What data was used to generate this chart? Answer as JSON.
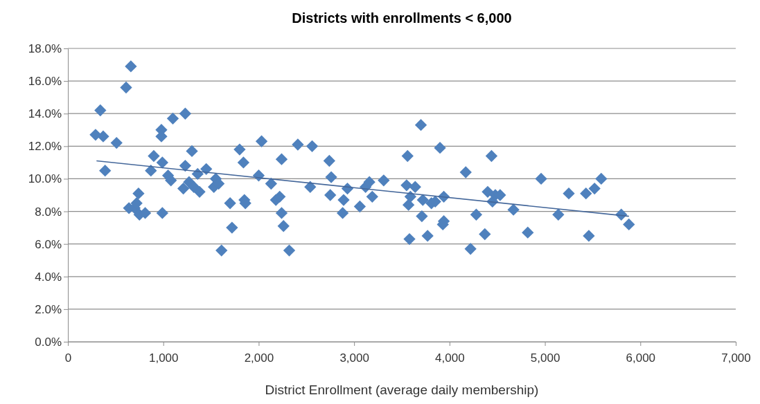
{
  "chart_data": {
    "type": "scatter",
    "title": "Districts with enrollments < 6,000",
    "xlabel": "District Enrollment (average daily membership)",
    "xlim": [
      0,
      7000
    ],
    "xticks": [
      0,
      {
        "value": 1000,
        "label": "1,000"
      },
      {
        "value": 2000,
        "label": "2,000"
      },
      {
        "value": 3000,
        "label": "3,000"
      },
      {
        "value": 4000,
        "label": "4,000"
      },
      {
        "value": 5000,
        "label": "5,000"
      },
      {
        "value": 6000,
        "label": "6,000"
      },
      {
        "value": 7000,
        "label": "7,000"
      }
    ],
    "ylim": [
      0,
      18
    ],
    "yticks": [
      {
        "value": 0,
        "label": "0.0%"
      },
      {
        "value": 2,
        "label": "2.0%"
      },
      {
        "value": 4,
        "label": "4.0%"
      },
      {
        "value": 6,
        "label": "6.0%"
      },
      {
        "value": 8,
        "label": "8.0%"
      },
      {
        "value": 10,
        "label": "10.0%"
      },
      {
        "value": 12,
        "label": "12.0%"
      },
      {
        "value": 14,
        "label": "14.0%"
      },
      {
        "value": 16,
        "label": "16.0%"
      },
      {
        "value": 18,
        "label": "18.0%"
      }
    ],
    "grid": "y",
    "series": [
      {
        "color": "#4f81bd",
        "marker": "diamond",
        "x": [
          290,
          340,
          370,
          390,
          510,
          610,
          660,
          640,
          700,
          720,
          740,
          750,
          810,
          870,
          900,
          980,
          980,
          990,
          990,
          1050,
          1080,
          1100,
          1230,
          1230,
          1210,
          1270,
          1300,
          1320,
          1380,
          1360,
          1450,
          1530,
          1550,
          1580,
          1610,
          1700,
          1720,
          1800,
          1840,
          1850,
          1860,
          2000,
          2030,
          2130,
          2180,
          2220,
          2240,
          2240,
          2260,
          2320,
          2410,
          2540,
          2560,
          2740,
          2760,
          2750,
          2880,
          2890,
          2930,
          3060,
          3120,
          3160,
          3190,
          3310,
          3550,
          3560,
          3570,
          3580,
          3590,
          3640,
          3700,
          3710,
          3720,
          3770,
          3810,
          3850,
          3900,
          3930,
          3940,
          3940,
          4170,
          4220,
          4280,
          4370,
          4400,
          4440,
          4450,
          4480,
          4530,
          4670,
          4820,
          4960,
          5140,
          5250,
          5430,
          5460,
          5520,
          5590,
          5800,
          5880
        ],
        "values": [
          12.7,
          14.2,
          12.6,
          10.5,
          12.2,
          15.6,
          16.9,
          8.2,
          8.2,
          8.5,
          9.1,
          7.8,
          7.9,
          10.5,
          11.4,
          13.0,
          12.6,
          11.0,
          7.9,
          10.2,
          9.9,
          13.7,
          14.0,
          10.8,
          9.4,
          9.8,
          11.7,
          9.5,
          9.2,
          10.3,
          10.6,
          9.5,
          10.0,
          9.7,
          5.6,
          8.5,
          7.0,
          11.8,
          11.0,
          8.7,
          8.5,
          10.2,
          12.3,
          9.7,
          8.7,
          8.9,
          11.2,
          7.9,
          7.1,
          5.6,
          12.1,
          9.5,
          12.0,
          11.1,
          10.1,
          9.0,
          7.9,
          8.7,
          9.4,
          8.3,
          9.5,
          9.8,
          8.9,
          9.9,
          9.6,
          11.4,
          8.4,
          6.3,
          8.9,
          9.5,
          13.3,
          7.7,
          8.7,
          6.5,
          8.5,
          8.6,
          11.9,
          7.2,
          7.4,
          8.9,
          10.4,
          5.7,
          7.8,
          6.6,
          9.2,
          11.4,
          8.6,
          9.0,
          9.0,
          8.1,
          6.7,
          10.0,
          7.8,
          9.1,
          9.1,
          6.5,
          9.4,
          10.0,
          7.8,
          7.2
        ]
      },
      {
        "type": "line",
        "color": "#44679a",
        "x": [
          300,
          5880
        ],
        "values": [
          11.1,
          7.7
        ]
      }
    ]
  }
}
